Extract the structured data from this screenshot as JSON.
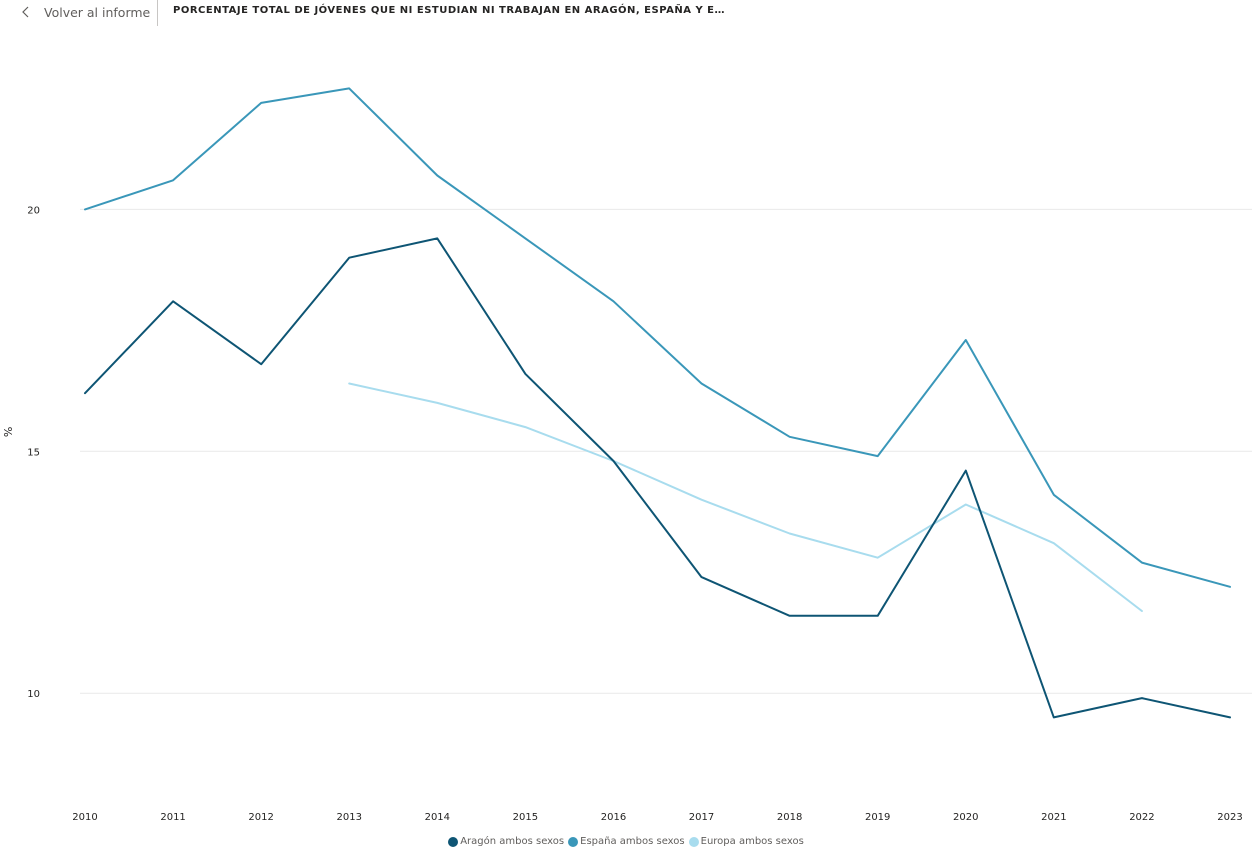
{
  "header": {
    "back_label": "Volver al informe",
    "title": "PORCENTAJE TOTAL DE JÓVENES QUE NI ESTUDIAN NI TRABAJAN EN ARAGÓN, ESPAÑA Y E…"
  },
  "chart_data": {
    "type": "line",
    "title": "PORCENTAJE TOTAL DE JÓVENES QUE NI ESTUDIAN NI TRABAJAN EN ARAGÓN, ESPAÑA Y E…",
    "xlabel": "",
    "ylabel": "%",
    "x": [
      "2010",
      "2011",
      "2012",
      "2013",
      "2014",
      "2015",
      "2016",
      "2017",
      "2018",
      "2019",
      "2020",
      "2021",
      "2022",
      "2023"
    ],
    "ylim": [
      8.0,
      23.5
    ],
    "yticks": [
      10,
      15,
      20
    ],
    "grid": true,
    "legend_position": "bottom-center",
    "series": [
      {
        "name": "Aragón ambos sexos",
        "color": "#0e5574",
        "values": [
          16.2,
          18.1,
          16.8,
          19.0,
          19.4,
          16.6,
          14.8,
          12.4,
          11.6,
          11.6,
          14.6,
          9.5,
          9.9,
          9.5
        ]
      },
      {
        "name": "España ambos sexos",
        "color": "#3a97b9",
        "values": [
          20.0,
          20.6,
          22.2,
          22.5,
          20.7,
          19.4,
          18.1,
          16.4,
          15.3,
          14.9,
          17.3,
          14.1,
          12.7,
          12.2
        ]
      },
      {
        "name": "Europa ambos sexos",
        "color": "#a8dcee",
        "values": [
          null,
          null,
          null,
          16.4,
          16.0,
          15.5,
          14.8,
          14.0,
          13.3,
          12.8,
          13.9,
          13.1,
          11.7,
          null
        ]
      }
    ]
  }
}
